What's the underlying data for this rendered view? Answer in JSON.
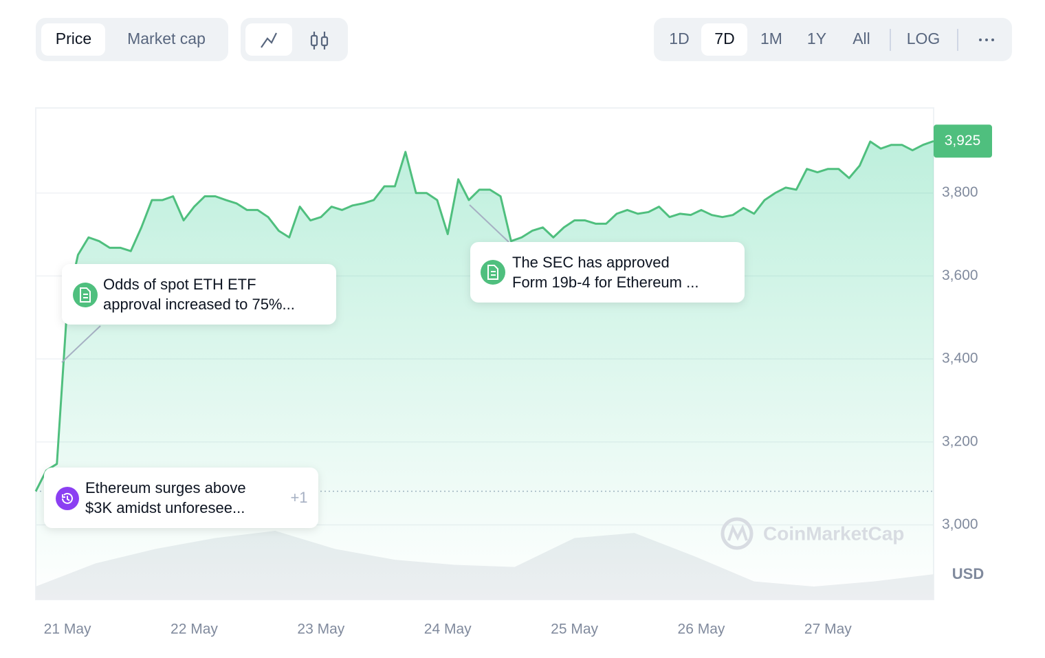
{
  "controls": {
    "metric": [
      "Price",
      "Market cap"
    ],
    "ranges": [
      "1D",
      "7D",
      "1M",
      "1Y",
      "All"
    ],
    "scale": "LOG"
  },
  "annotations": [
    {
      "lines": [
        "Odds of spot ETH ETF",
        "approval increased to 75%..."
      ]
    },
    {
      "lines": [
        "The SEC has approved",
        "Form 19b-4 for Ethereum ..."
      ]
    },
    {
      "lines": [
        "Ethereum surges above",
        "$3K amidst unforesee..."
      ],
      "more": "+1"
    }
  ],
  "watermark": "CoinMarketCap",
  "chart_data": {
    "type": "line",
    "categories": [
      null,
      null,
      null,
      "21 May",
      null,
      null,
      null,
      null,
      null,
      null,
      null,
      null,
      null,
      null,
      null,
      "22 May",
      null,
      null,
      null,
      null,
      null,
      null,
      null,
      null,
      null,
      null,
      null,
      "23 May",
      null,
      null,
      null,
      null,
      null,
      null,
      null,
      null,
      null,
      null,
      null,
      "24 May",
      null,
      null,
      null,
      null,
      null,
      null,
      null,
      null,
      null,
      null,
      null,
      "25 May",
      null,
      null,
      null,
      null,
      null,
      null,
      null,
      null,
      null,
      null,
      null,
      "26 May",
      null,
      null,
      null,
      null,
      null,
      null,
      null,
      null,
      null,
      null,
      null,
      "27 May",
      null,
      null,
      null,
      null,
      null,
      null,
      null,
      null,
      null,
      null
    ],
    "series": [
      {
        "color": "#4fbf7e",
        "values": [
          3081,
          3131,
          3147,
          3535,
          3651,
          3693,
          3684,
          3668,
          3668,
          3660,
          3717,
          3783,
          3783,
          3792,
          3734,
          3767,
          3792,
          3792,
          3783,
          3775,
          3759,
          3759,
          3742,
          3709,
          3693,
          3767,
          3734,
          3742,
          3767,
          3759,
          3770,
          3775,
          3783,
          3816,
          3816,
          3899,
          3800,
          3800,
          3783,
          3701,
          3833,
          3783,
          3808,
          3808,
          3792,
          3684,
          3693,
          3709,
          3717,
          3693,
          3717,
          3734,
          3734,
          3726,
          3726,
          3750,
          3759,
          3750,
          3754,
          3767,
          3742,
          3750,
          3747,
          3759,
          3747,
          3742,
          3747,
          3764,
          3750,
          3783,
          3800,
          3813,
          3808,
          3858,
          3850,
          3858,
          3858,
          3836,
          3866,
          3924,
          3907,
          3916,
          3916,
          3903,
          3916,
          3925
        ]
      }
    ],
    "ylim": [
      2820,
      4005
    ],
    "yticks": [
      {
        "value": 3000,
        "label": "3,000"
      },
      {
        "value": 3200,
        "label": "3,200"
      },
      {
        "value": 3400,
        "label": "3,400"
      },
      {
        "value": 3600,
        "label": "3,600"
      },
      {
        "value": 3800,
        "label": "3,800"
      }
    ],
    "grid": true,
    "reference_line": 3081,
    "current_price": {
      "value": 3925,
      "label": "3,925"
    },
    "unit": "USD",
    "volume": {
      "color": "#eceef1",
      "values": [
        18,
        50,
        70,
        85,
        95,
        70,
        55,
        48,
        45,
        85,
        92,
        60,
        25,
        18,
        25,
        35
      ]
    }
  }
}
